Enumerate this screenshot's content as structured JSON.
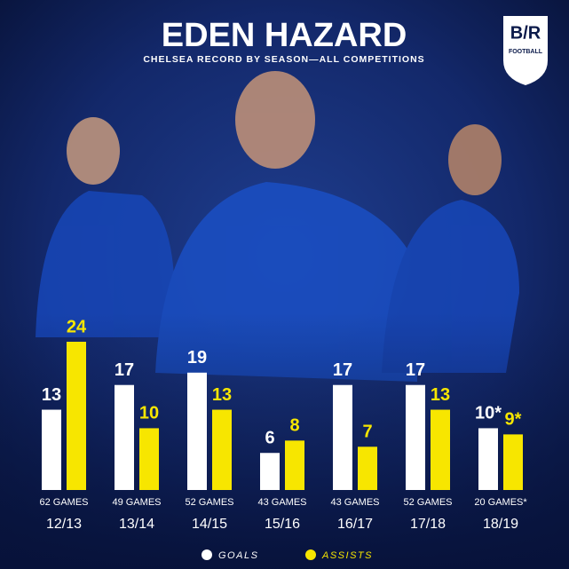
{
  "chart_data": {
    "type": "bar",
    "title": "EDEN HAZARD",
    "subtitle": "CHELSEA RECORD BY SEASON—ALL COMPETITIONS",
    "logo": {
      "brand": "B/R",
      "sub": "FOOTBALL"
    },
    "categories": [
      "12/13",
      "13/14",
      "14/15",
      "15/16",
      "16/17",
      "17/18",
      "18/19"
    ],
    "games": [
      "62 GAMES",
      "49 GAMES",
      "52 GAMES",
      "43 GAMES",
      "43 GAMES",
      "52 GAMES",
      "20 GAMES*"
    ],
    "series": [
      {
        "name": "GOALS",
        "color": "#ffffff",
        "values": [
          13,
          17,
          19,
          6,
          17,
          17,
          10
        ],
        "value_labels": [
          "13",
          "17",
          "19",
          "6",
          "17",
          "17",
          "10*"
        ]
      },
      {
        "name": "ASSISTS",
        "color": "#f7e600",
        "values": [
          24,
          10,
          13,
          8,
          7,
          13,
          9
        ],
        "value_labels": [
          "24",
          "10",
          "13",
          "8",
          "7",
          "13",
          "9*"
        ]
      }
    ]
  }
}
